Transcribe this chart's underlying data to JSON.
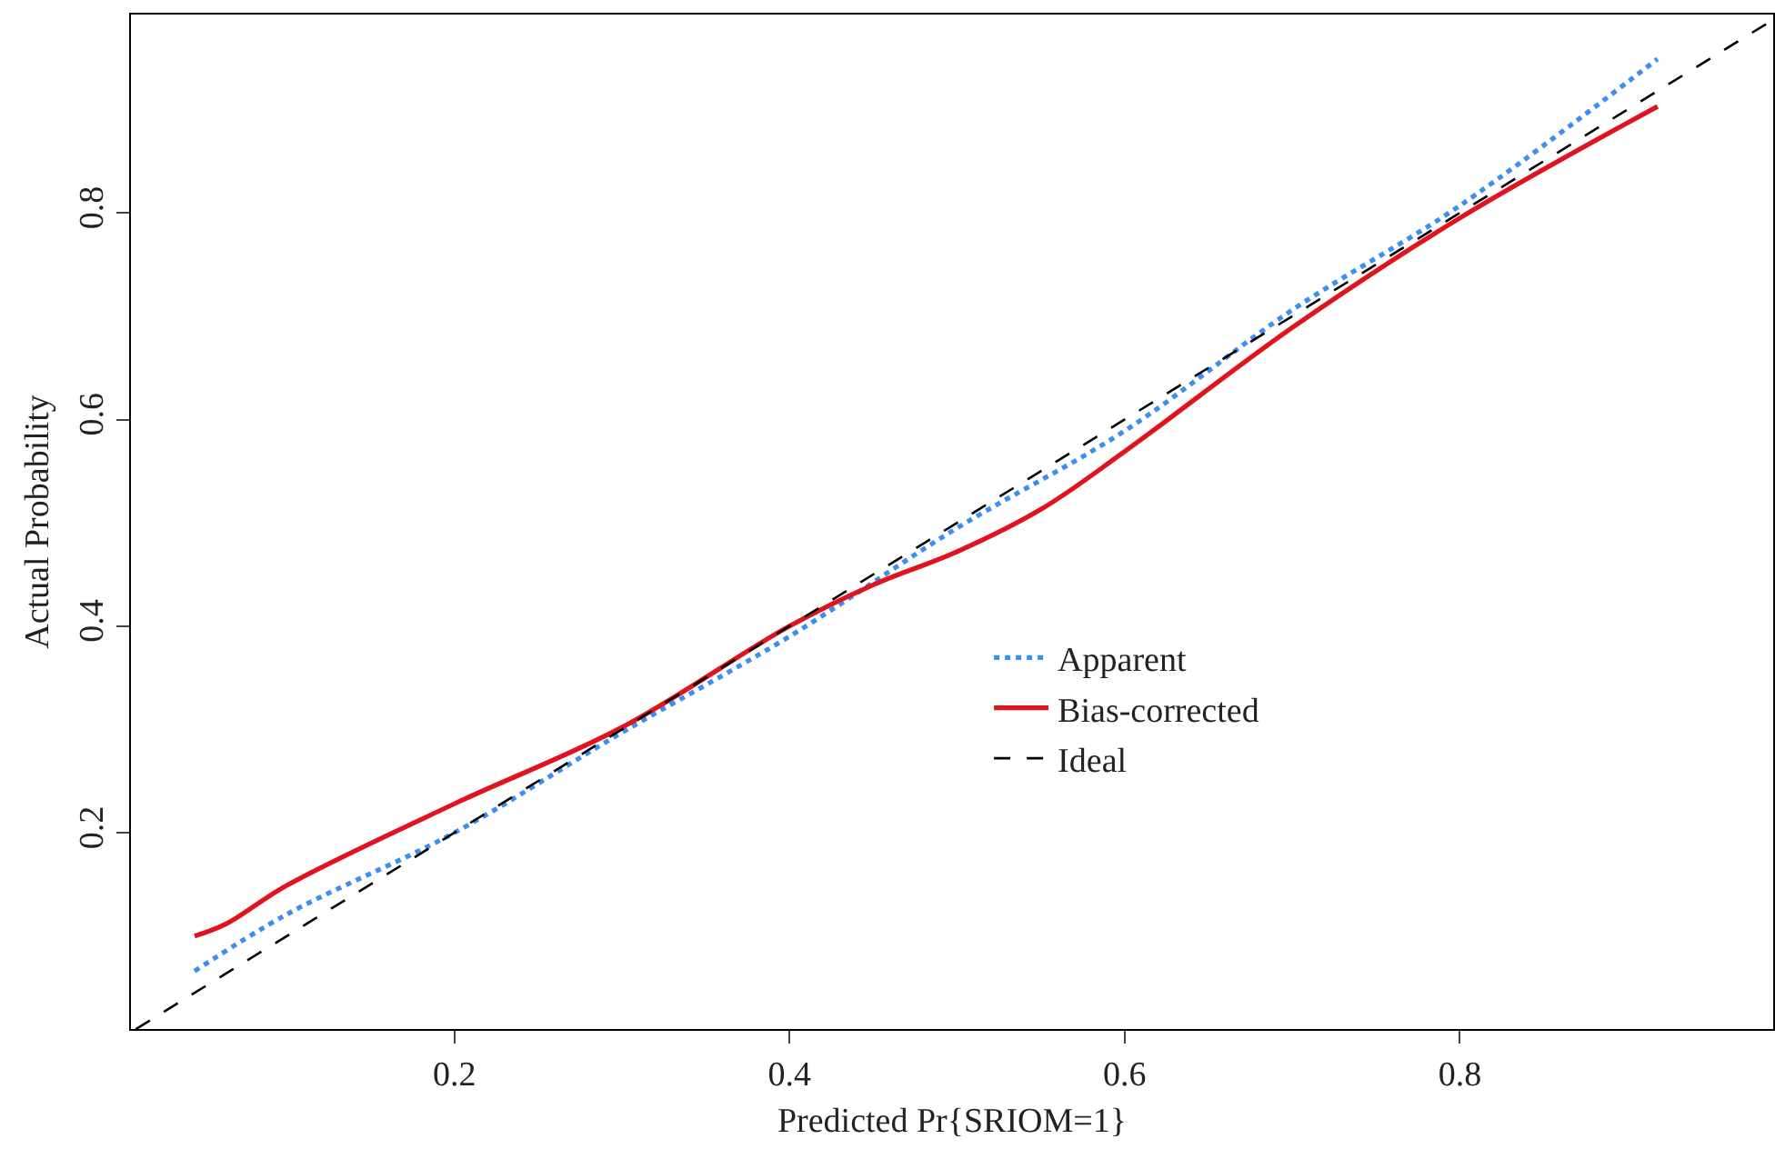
{
  "chart_data": {
    "type": "line",
    "xlabel": "Predicted Pr{SRIOM=1}",
    "ylabel": "Actual Probability",
    "series": [
      {
        "name": "Apparent",
        "color": "#3c8ff0",
        "line_style": "dotted",
        "x": [
          0.045,
          0.1,
          0.2,
          0.3,
          0.4,
          0.5,
          0.6,
          0.7,
          0.8,
          0.918
        ],
        "values": [
          0.066,
          0.121,
          0.2,
          0.297,
          0.39,
          0.495,
          0.589,
          0.706,
          0.807,
          0.949
        ]
      },
      {
        "name": "Bias-corrected",
        "color": "#e0141e",
        "line_style": "solid",
        "x": [
          0.045,
          0.064,
          0.1,
          0.2,
          0.3,
          0.4,
          0.45,
          0.5,
          0.55,
          0.6,
          0.7,
          0.8,
          0.918
        ],
        "values": [
          0.1,
          0.112,
          0.149,
          0.228,
          0.302,
          0.4,
          0.44,
          0.472,
          0.513,
          0.569,
          0.689,
          0.795,
          0.903
        ]
      },
      {
        "name": "Ideal",
        "color": "#000000",
        "line_style": "dashed",
        "x": [
          0.01,
          0.987
        ],
        "values": [
          0.01,
          0.987
        ]
      }
    ],
    "xlim": [
      0.007,
      0.987
    ],
    "ylim": [
      0.01,
      0.992
    ],
    "xticks": [
      0.2,
      0.4,
      0.6,
      0.8
    ],
    "yticks": [
      0.2,
      0.4,
      0.6,
      0.8
    ],
    "grid": false,
    "legend": "right",
    "marker": "none"
  }
}
